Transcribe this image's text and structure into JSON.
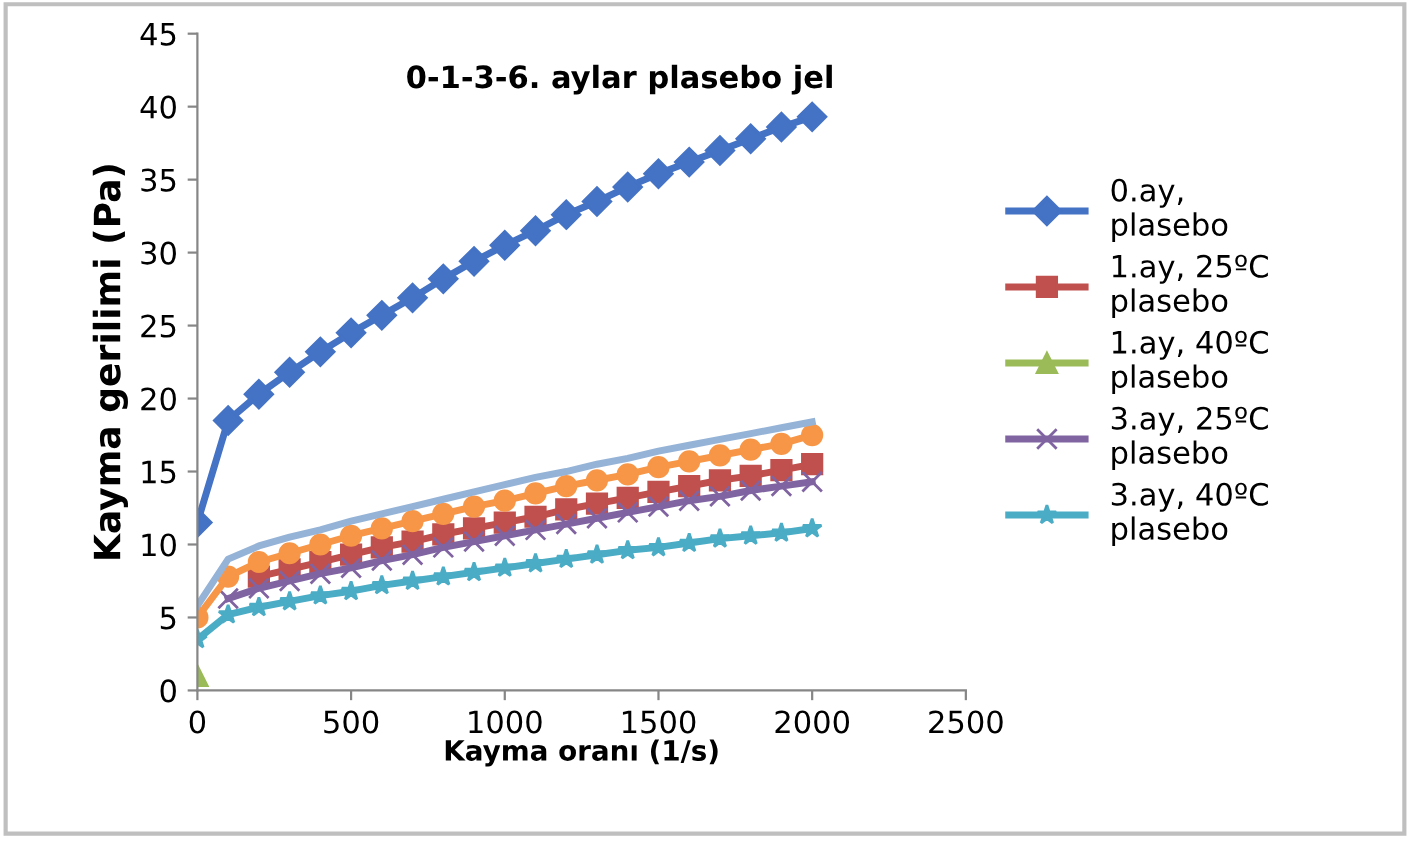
{
  "chart_data": {
    "type": "line",
    "title": "0-1-3-6. aylar plasebo jel",
    "xlabel": "Kayma oranı (1/s)",
    "ylabel": "Kayma gerilimi (Pa)",
    "x": [
      0,
      100,
      200,
      300,
      400,
      500,
      600,
      700,
      800,
      900,
      1000,
      1100,
      1200,
      1300,
      1400,
      1500,
      1600,
      1700,
      1800,
      1900,
      2000
    ],
    "xlim": [
      0,
      2500
    ],
    "xticks": [
      0,
      500,
      1000,
      1500,
      2000,
      2500
    ],
    "ylim": [
      0,
      45
    ],
    "yticks": [
      0,
      5,
      10,
      15,
      20,
      25,
      30,
      35,
      40,
      45
    ],
    "grid": false,
    "legend": "right",
    "line_style": "solid",
    "series": [
      {
        "name": "0.ay, plasebo",
        "color": "#4472c4",
        "marker": "diamond",
        "values": [
          11.5,
          18.5,
          20.3,
          21.8,
          23.2,
          24.5,
          25.7,
          26.9,
          28.2,
          29.4,
          30.5,
          31.5,
          32.6,
          33.5,
          34.5,
          35.4,
          36.2,
          37.0,
          37.8,
          38.6,
          39.3
        ]
      },
      {
        "name": "1.ay, 25ºC plasebo",
        "color": "#c0504d",
        "marker": "square",
        "values": [
          null,
          null,
          7.8,
          8.3,
          8.8,
          9.3,
          9.8,
          10.2,
          10.7,
          11.1,
          11.5,
          11.9,
          12.4,
          12.8,
          13.2,
          13.6,
          14.0,
          14.4,
          14.7,
          15.1,
          15.5
        ]
      },
      {
        "name": "1.ay, 40ºC plasebo",
        "color": "#9bbb59",
        "marker": "triangle",
        "values": [
          1.0,
          null,
          null,
          null,
          null,
          null,
          null,
          null,
          null,
          null,
          null,
          null,
          null,
          null,
          null,
          null,
          null,
          null,
          null,
          null,
          null
        ]
      },
      {
        "name": "3.ay, 25ºC plasebo",
        "color": "#8064a2",
        "marker": "cross",
        "values": [
          null,
          6.3,
          7.0,
          7.5,
          8.0,
          8.4,
          8.9,
          9.3,
          9.8,
          10.2,
          10.6,
          11.0,
          11.4,
          11.8,
          12.2,
          12.6,
          13.0,
          13.3,
          13.7,
          14.0,
          14.3
        ]
      },
      {
        "name": "3.ay, 40ºC plasebo",
        "color": "#4bacc6",
        "marker": "star",
        "values": [
          3.5,
          5.2,
          5.7,
          6.1,
          6.5,
          6.8,
          7.2,
          7.5,
          7.8,
          8.1,
          8.4,
          8.7,
          9.0,
          9.3,
          9.6,
          9.8,
          10.1,
          10.4,
          10.6,
          10.8,
          11.1
        ]
      },
      {
        "color": "#f79646",
        "marker": "circle",
        "values": [
          5.0,
          7.8,
          8.8,
          9.4,
          10.0,
          10.6,
          11.1,
          11.6,
          12.1,
          12.6,
          13.0,
          13.5,
          14.0,
          14.4,
          14.8,
          15.3,
          15.7,
          16.1,
          16.5,
          16.9,
          17.5
        ]
      },
      {
        "color": "#95b3d7",
        "marker": "none",
        "values": [
          5.8,
          9.0,
          9.9,
          10.5,
          11.0,
          11.6,
          12.1,
          12.6,
          13.1,
          13.6,
          14.1,
          14.6,
          15.0,
          15.5,
          15.9,
          16.4,
          16.8,
          17.2,
          17.6,
          18.0,
          18.4
        ]
      }
    ]
  }
}
